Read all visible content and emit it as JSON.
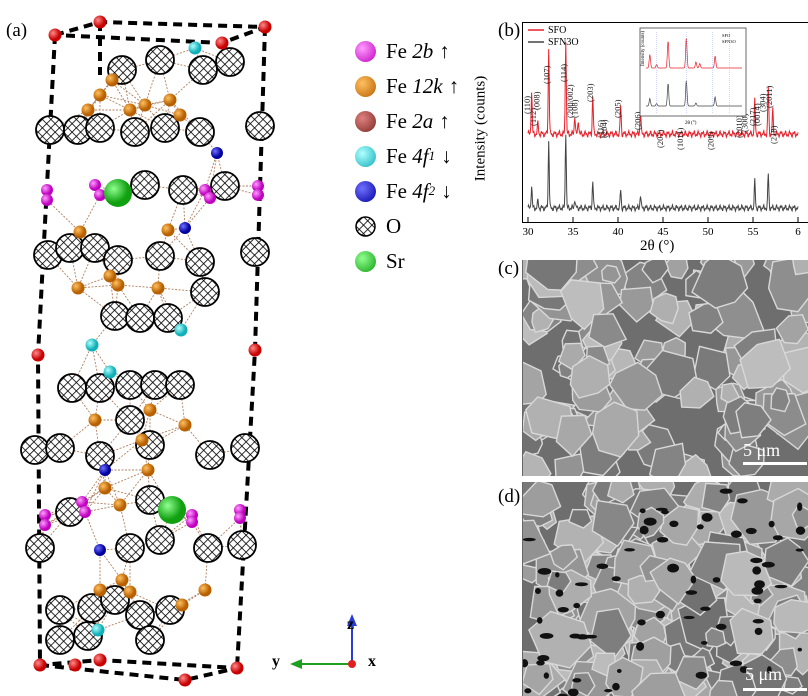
{
  "panels": {
    "a": "(a)",
    "b": "(b)",
    "c": "(c)",
    "d": "(d)"
  },
  "legend": [
    {
      "element": "Fe",
      "site": "2b",
      "sub": "",
      "arrow": "↑",
      "color": "#e020e0"
    },
    {
      "element": "Fe",
      "site": "12k",
      "sub": "",
      "arrow": "↑",
      "color": "#d27a0e"
    },
    {
      "element": "Fe",
      "site": "2a",
      "sub": "",
      "arrow": "↑",
      "color": "#9a3a32"
    },
    {
      "element": "Fe",
      "site": "4f",
      "sub": "1",
      "arrow": "↓",
      "color": "#23d0d8"
    },
    {
      "element": "Fe",
      "site": "4f",
      "sub": "2",
      "arrow": "↓",
      "color": "#1a1ac8"
    },
    {
      "element": "O",
      "site": "",
      "sub": "",
      "arrow": "",
      "color": "hatched"
    },
    {
      "element": "Sr",
      "site": "",
      "sub": "",
      "arrow": "",
      "color": "#22c822"
    }
  ],
  "axes_triad": {
    "z": "z",
    "y": "y",
    "x": "x"
  },
  "chart_data": {
    "type": "line",
    "ylabel": "Intensity (counts)",
    "xlabel": "2θ (°)",
    "xlim": [
      30,
      60
    ],
    "xticks": [
      "30",
      "35",
      "40",
      "45",
      "50",
      "55",
      "6"
    ],
    "series": [
      {
        "name": "SFO",
        "color": "#e8202a",
        "peaks": [
          [
            30.4,
            0.45
          ],
          [
            31.1,
            0.12
          ],
          [
            32.3,
            0.9
          ],
          [
            34.2,
            1.0
          ],
          [
            35.2,
            0.2
          ],
          [
            35.6,
            0.15
          ],
          [
            37.2,
            0.4
          ],
          [
            40.3,
            0.3
          ],
          [
            42.5,
            0.25
          ],
          [
            55.2,
            0.35
          ],
          [
            56.7,
            0.5
          ],
          [
            57.2,
            0.25
          ]
        ]
      },
      {
        "name": "SFN3O",
        "color": "#444444",
        "peaks": [
          [
            30.4,
            0.25
          ],
          [
            31.1,
            0.08
          ],
          [
            32.3,
            0.75
          ],
          [
            34.2,
            0.85
          ],
          [
            35.2,
            0.1
          ],
          [
            37.2,
            0.3
          ],
          [
            40.3,
            0.2
          ],
          [
            42.5,
            0.15
          ],
          [
            55.2,
            0.3
          ],
          [
            56.7,
            0.38
          ]
        ]
      }
    ],
    "peak_labels": [
      "(110)",
      "(112)",
      "(008)",
      "(107)",
      "(114)",
      "(200/002)",
      "(108)",
      "(203)",
      "(116)",
      "(204)",
      "(205)",
      "(206)",
      "(207)",
      "(1011)",
      "(209)",
      "(2010)",
      "(300)",
      "(217)",
      "(0014)",
      "(304)",
      "(2011)",
      "(218)"
    ],
    "inset": {
      "ylabel": "Intensity (counts)",
      "xlabel": "2θ (°)",
      "legend": [
        "SFO",
        "SFN3O"
      ]
    }
  },
  "sem": {
    "c_scale": "5 μm",
    "d_scale": "5 μm"
  }
}
